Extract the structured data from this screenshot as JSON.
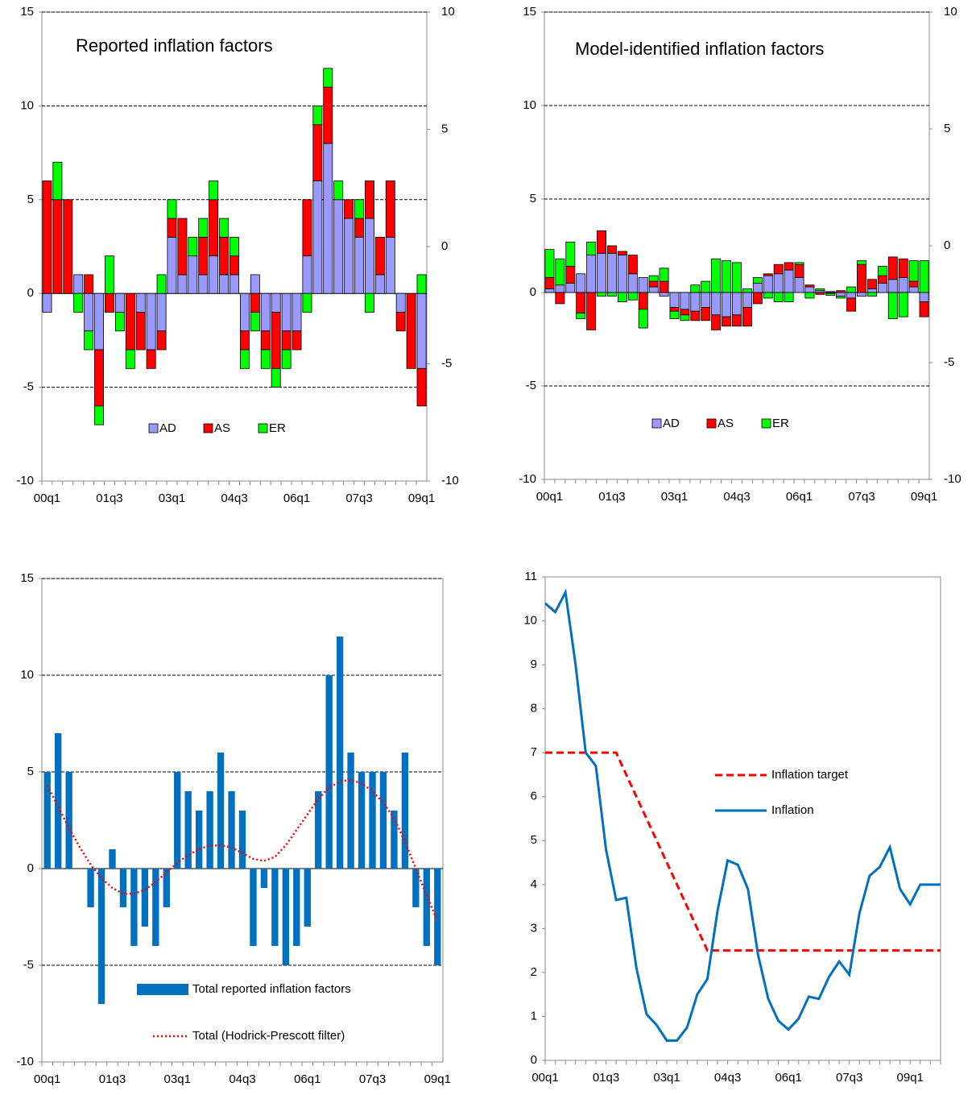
{
  "chart_data": [
    {
      "type": "stacked_bar",
      "title": "Reported inflation factors",
      "categories": [
        "00q1",
        null,
        null,
        null,
        null,
        null,
        "01q3",
        null,
        null,
        null,
        null,
        null,
        "03q1",
        null,
        null,
        null,
        null,
        null,
        "04q3",
        null,
        null,
        null,
        null,
        null,
        "06q1",
        null,
        null,
        null,
        null,
        null,
        "07q3",
        null,
        null,
        null,
        null,
        null,
        "09q1"
      ],
      "series": [
        {
          "name": "AD",
          "color": "#9999ff",
          "values": [
            -1,
            0,
            0,
            1,
            -2,
            -3,
            0,
            -1,
            0,
            -1,
            -3,
            -2,
            3,
            1,
            2,
            1,
            2,
            1,
            1,
            -2,
            1,
            -2,
            -1,
            -2,
            -2,
            2,
            6,
            8,
            5,
            4,
            3,
            4,
            1,
            3,
            -1,
            0,
            -4
          ]
        },
        {
          "name": "AS",
          "color": "#ff0000",
          "values": [
            6,
            5,
            5,
            0,
            1,
            -3,
            -1,
            0,
            -3,
            -2,
            -1,
            -1,
            1,
            3,
            0,
            2,
            3,
            2,
            1,
            -1,
            -1,
            -1,
            -3,
            -1,
            -1,
            3,
            3,
            3,
            0,
            1,
            1,
            2,
            2,
            3,
            -1,
            -4,
            -2
          ]
        },
        {
          "name": "ER",
          "color": "#00ff00",
          "values": [
            0,
            2,
            0,
            -1,
            -1,
            -1,
            2,
            -1,
            -1,
            0,
            0,
            1,
            1,
            0,
            1,
            1,
            1,
            1,
            1,
            -1,
            -1,
            -1,
            -1,
            -1,
            0,
            -1,
            1,
            1,
            1,
            0,
            1,
            -1,
            0,
            0,
            0,
            0,
            1
          ]
        }
      ],
      "ylim": [
        -10,
        15
      ],
      "yticks": [
        -10,
        -5,
        0,
        5,
        10,
        15
      ],
      "y2lim": [
        -10,
        10
      ],
      "y2ticks": [
        -10,
        -5,
        0,
        5,
        10
      ],
      "grid": true,
      "legend": "bottom"
    },
    {
      "type": "stacked_bar",
      "title": "Model-identified inflation factors",
      "categories": [
        "00q1",
        null,
        null,
        null,
        null,
        null,
        "01q3",
        null,
        null,
        null,
        null,
        null,
        "03q1",
        null,
        null,
        null,
        null,
        null,
        "04q3",
        null,
        null,
        null,
        null,
        null,
        "06q1",
        null,
        null,
        null,
        null,
        null,
        "07q3",
        null,
        null,
        null,
        null,
        null,
        "09q1"
      ],
      "series": [
        {
          "name": "AD",
          "color": "#9999ff",
          "values": [
            0.2,
            0.4,
            0.5,
            1.0,
            2.0,
            2.1,
            2.1,
            2.0,
            1.0,
            0.8,
            0.3,
            -0.2,
            -0.8,
            -0.9,
            -1.0,
            -0.8,
            -1.2,
            -1.3,
            -1.2,
            -0.8,
            0.5,
            0.9,
            1.0,
            1.2,
            0.8,
            0.3,
            0.1,
            0.05,
            -0.2,
            -0.3,
            -0.2,
            0.2,
            0.5,
            0.7,
            0.8,
            0.3,
            -0.5
          ]
        },
        {
          "name": "AS",
          "color": "#ff0000",
          "values": [
            0.6,
            -0.6,
            0.9,
            -1.1,
            -2.0,
            1.2,
            0.4,
            0.2,
            1.0,
            -0.9,
            0.3,
            0.6,
            -0.2,
            -0.3,
            -0.5,
            -0.7,
            -0.8,
            -0.5,
            -0.6,
            -1.0,
            -0.6,
            0.1,
            0.5,
            0.4,
            0.7,
            0.1,
            -0.1,
            -0.05,
            0.1,
            -0.7,
            1.5,
            0.5,
            0.4,
            1.2,
            1.0,
            0.3,
            -0.8
          ]
        },
        {
          "name": "ER",
          "color": "#00ff00",
          "values": [
            1.5,
            1.4,
            1.3,
            -0.3,
            0.7,
            -0.2,
            -0.2,
            -0.5,
            -0.4,
            -1.0,
            0.3,
            0.7,
            -0.4,
            -0.3,
            0.4,
            0.6,
            1.8,
            1.7,
            1.6,
            0.2,
            0.3,
            -0.3,
            -0.5,
            -0.5,
            0.1,
            -0.3,
            0.1,
            -0.1,
            -0.1,
            0.3,
            0.2,
            -0.2,
            0.5,
            -1.4,
            -1.3,
            1.1,
            1.7
          ]
        }
      ],
      "ylim": [
        -10,
        15
      ],
      "yticks": [
        -10,
        -5,
        0,
        5,
        10,
        15
      ],
      "y2lim": [
        -10,
        10
      ],
      "y2ticks": [
        -10,
        -5,
        0,
        5,
        10
      ],
      "grid": true,
      "legend": "bottom"
    },
    {
      "type": "combo",
      "categories": [
        "00q1",
        null,
        null,
        null,
        null,
        null,
        "01q3",
        null,
        null,
        null,
        null,
        null,
        "03q1",
        null,
        null,
        null,
        null,
        null,
        "04q3",
        null,
        null,
        null,
        null,
        null,
        "06q1",
        null,
        null,
        null,
        null,
        null,
        "07q3",
        null,
        null,
        null,
        null,
        null,
        "09q1"
      ],
      "series": [
        {
          "name": "Total reported inflation factors",
          "type": "bar",
          "color": "#0070c0",
          "values": [
            5,
            7,
            5,
            0,
            -2,
            -7,
            1,
            -2,
            -4,
            -3,
            -4,
            -2,
            5,
            4,
            3,
            4,
            6,
            4,
            3,
            -4,
            -1,
            -4,
            -5,
            -4,
            -3,
            4,
            10,
            12,
            6,
            5,
            5,
            5,
            3,
            6,
            -2,
            -4,
            -5
          ]
        },
        {
          "name": "Total (Hodrick-Prescott filter)",
          "type": "line",
          "dash": "dotted",
          "color": "#ff0000",
          "values": [
            4.3,
            3.2,
            2.1,
            1.1,
            0.2,
            -0.5,
            -1,
            -1.3,
            -1.3,
            -1.1,
            -0.7,
            -0.2,
            0.3,
            0.7,
            1,
            1.2,
            1.2,
            1.1,
            0.8,
            0.5,
            0.4,
            0.6,
            1.2,
            2,
            2.8,
            3.6,
            4.2,
            4.5,
            4.6,
            4.4,
            4,
            3.4,
            2.6,
            1.4,
            0,
            -1.4,
            -2.7
          ]
        }
      ],
      "ylim": [
        -10,
        15
      ],
      "yticks": [
        -10,
        -5,
        0,
        5,
        10,
        15
      ],
      "grid": true,
      "legend": "bottom"
    },
    {
      "type": "line",
      "categories": [
        "00q1",
        null,
        null,
        null,
        null,
        null,
        "01q3",
        null,
        null,
        null,
        null,
        null,
        "03q1",
        null,
        null,
        null,
        null,
        null,
        "04q3",
        null,
        null,
        null,
        null,
        null,
        "06q1",
        null,
        null,
        null,
        null,
        null,
        "07q3",
        null,
        null,
        null,
        null,
        null,
        "09q1",
        null,
        null,
        null
      ],
      "series": [
        {
          "name": "Inflation target",
          "dash": "dashed",
          "color": "#ff0000",
          "values": [
            7,
            7,
            7,
            7,
            7,
            7,
            7,
            7,
            6.5,
            6,
            5.5,
            5,
            4.5,
            4,
            3.5,
            3,
            2.5,
            2.5,
            2.5,
            2.5,
            2.5,
            2.5,
            2.5,
            2.5,
            2.5,
            2.5,
            2.5,
            2.5,
            2.5,
            2.5,
            2.5,
            2.5,
            2.5,
            2.5,
            2.5,
            2.5,
            2.5,
            2.5,
            2.5,
            2.5
          ]
        },
        {
          "name": "Inflation",
          "color": "#0070c0",
          "values": [
            10.4,
            10.2,
            10.65,
            9.0,
            7.0,
            6.7,
            4.8,
            3.65,
            3.7,
            2.1,
            1.05,
            0.8,
            0.45,
            0.45,
            0.75,
            1.5,
            1.85,
            3.4,
            4.55,
            4.45,
            3.9,
            2.4,
            1.4,
            0.9,
            0.7,
            0.95,
            1.45,
            1.4,
            1.9,
            2.25,
            1.95,
            3.35,
            4.2,
            4.4,
            4.85,
            3.9,
            3.55,
            4.0,
            4.0,
            4.0
          ]
        }
      ],
      "ylim": [
        0,
        11
      ],
      "yticks": [
        0,
        1,
        2,
        3,
        4,
        5,
        6,
        7,
        8,
        9,
        10,
        11
      ],
      "grid": false,
      "legend": "center"
    }
  ]
}
